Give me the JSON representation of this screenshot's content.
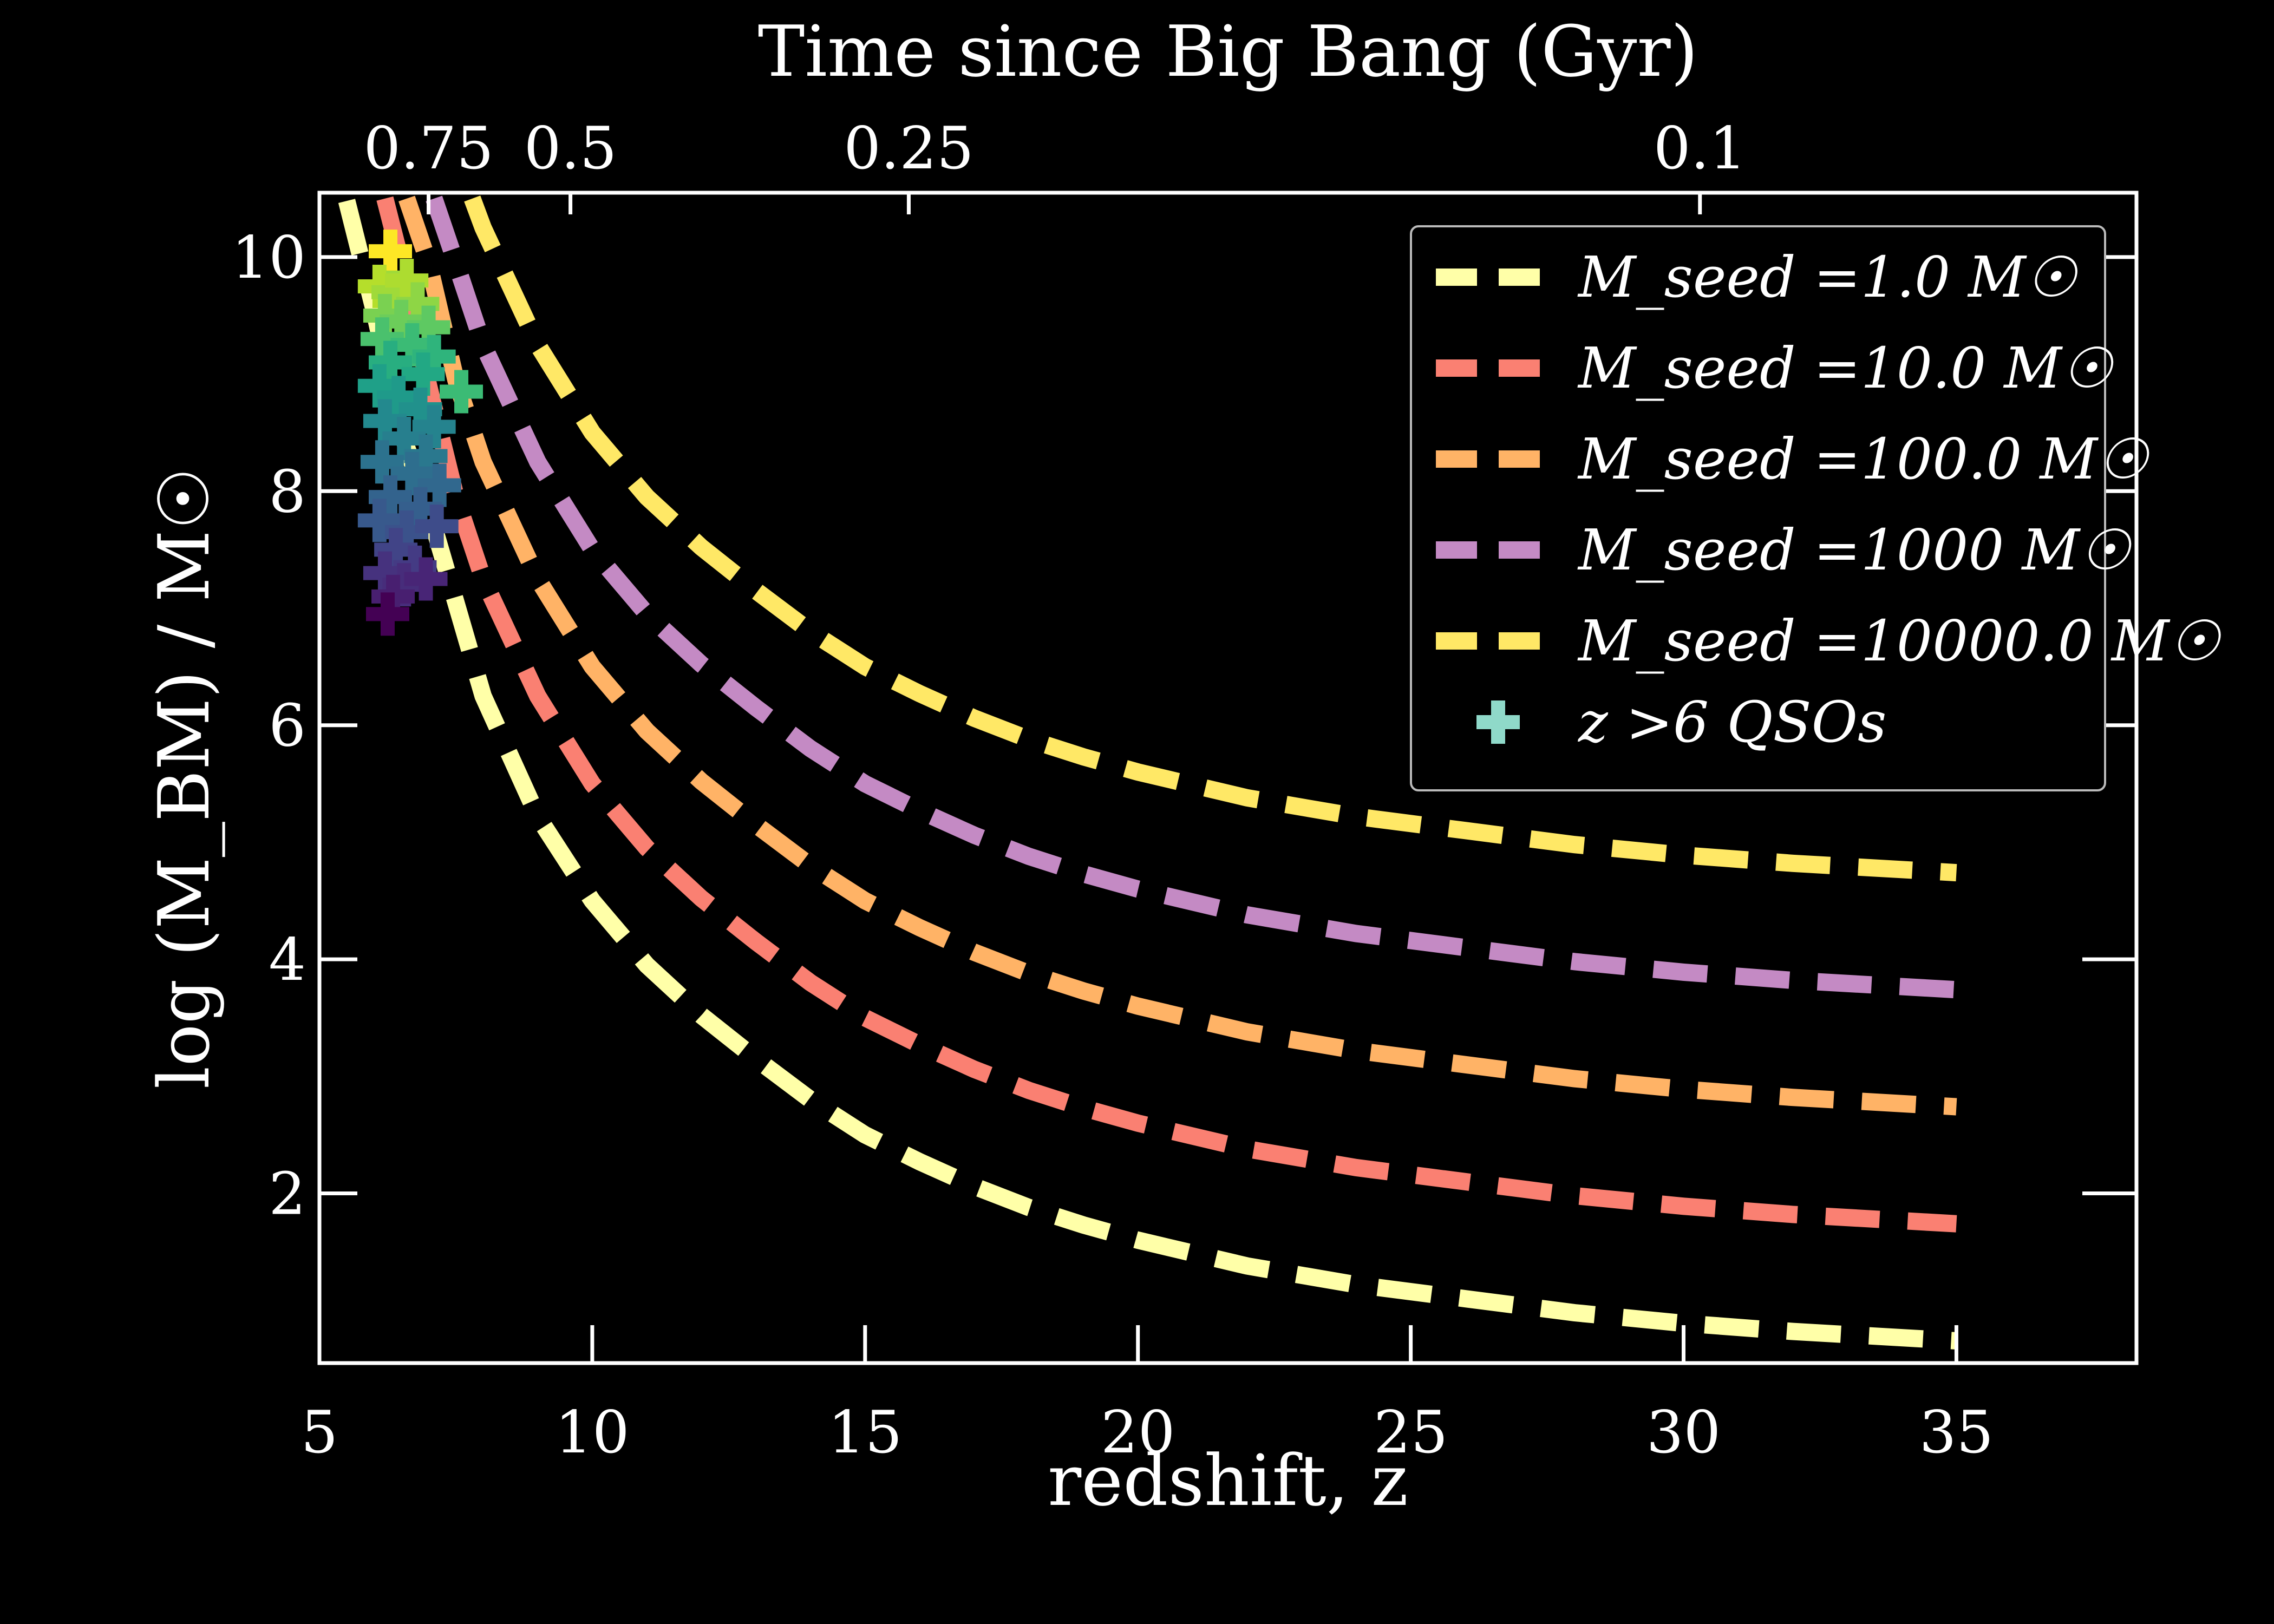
{
  "chart_data": {
    "type": "line",
    "xlabel": "redshift, z",
    "ylabel": "log (M_BM) / M☉",
    "top_xlabel": "Time since Big Bang (Gyr)",
    "xlim": [
      5,
      38.3
    ],
    "ylim": [
      0.55,
      10.55
    ],
    "x_ticks": [
      5,
      10,
      15,
      20,
      25,
      30,
      35
    ],
    "y_ticks": [
      2,
      4,
      6,
      8,
      10
    ],
    "top_ticks": [
      {
        "label": "0.75",
        "z": 7.0
      },
      {
        "label": "0.5",
        "z": 9.6
      },
      {
        "label": "0.25",
        "z": 15.8
      },
      {
        "label": "0.1",
        "z": 30.3
      }
    ],
    "background": "#000000",
    "axis_color": "#ffffff",
    "legend_position": "upper right",
    "series": [
      {
        "name": "M_seed =1.0 M☉",
        "color": "#ffffa8",
        "x": [
          5.5,
          6,
          6.5,
          7,
          8,
          9,
          10,
          11,
          12,
          13,
          14,
          15,
          16,
          17,
          18,
          19,
          20,
          22,
          24,
          26,
          28,
          30,
          32,
          35
        ],
        "y": [
          10.48,
          9.55,
          8.5,
          7.85,
          6.25,
          5.22,
          4.5,
          3.95,
          3.52,
          3.15,
          2.8,
          2.5,
          2.27,
          2.06,
          1.88,
          1.73,
          1.6,
          1.38,
          1.22,
          1.1,
          0.98,
          0.89,
          0.82,
          0.74
        ]
      },
      {
        "name": "M_seed =10.0 M☉",
        "color": "#fa8072",
        "x": [
          6.2,
          6.5,
          7,
          7.5,
          8,
          9,
          10,
          11,
          12,
          13,
          14,
          15,
          16,
          17,
          18,
          19,
          20,
          22,
          24,
          26,
          28,
          30,
          32,
          35
        ],
        "y": [
          10.5,
          9.95,
          8.9,
          7.95,
          7.25,
          6.25,
          5.5,
          4.95,
          4.52,
          4.15,
          3.8,
          3.5,
          3.27,
          3.06,
          2.88,
          2.73,
          2.6,
          2.38,
          2.22,
          2.1,
          1.98,
          1.89,
          1.82,
          1.74
        ]
      },
      {
        "name": "M_seed =100.0 M☉",
        "color": "#ffb366",
        "x": [
          6.6,
          7,
          7.5,
          8,
          9,
          10,
          11,
          12,
          13,
          14,
          15,
          16,
          17,
          18,
          19,
          20,
          22,
          24,
          26,
          28,
          30,
          32,
          35
        ],
        "y": [
          10.5,
          9.95,
          8.95,
          8.25,
          7.25,
          6.5,
          5.95,
          5.52,
          5.15,
          4.8,
          4.5,
          4.27,
          4.06,
          3.88,
          3.73,
          3.6,
          3.38,
          3.22,
          3.1,
          2.98,
          2.89,
          2.82,
          2.74
        ]
      },
      {
        "name": "M_seed =1000 M☉",
        "color": "#c48ac4",
        "x": [
          7.1,
          7.5,
          8,
          9,
          10,
          11,
          12,
          13,
          14,
          15,
          16,
          17,
          18,
          19,
          20,
          22,
          24,
          26,
          28,
          30,
          32,
          35
        ],
        "y": [
          10.5,
          9.95,
          9.25,
          8.25,
          7.5,
          6.95,
          6.52,
          6.15,
          5.8,
          5.5,
          5.27,
          5.06,
          4.88,
          4.73,
          4.6,
          4.38,
          4.22,
          4.1,
          3.98,
          3.89,
          3.82,
          3.74
        ]
      },
      {
        "name": "M_seed =10000.0 M☉",
        "color": "#ffe866",
        "x": [
          7.8,
          8,
          9,
          10,
          11,
          12,
          13,
          14,
          15,
          16,
          17,
          18,
          19,
          20,
          22,
          24,
          26,
          28,
          30,
          32,
          35
        ],
        "y": [
          10.5,
          10.25,
          9.25,
          8.5,
          7.95,
          7.52,
          7.15,
          6.8,
          6.5,
          6.27,
          6.06,
          5.88,
          5.73,
          5.6,
          5.38,
          5.22,
          5.1,
          4.98,
          4.89,
          4.82,
          4.74
        ]
      }
    ],
    "qso_series": {
      "name": "z >6 QSOs",
      "legend_color": "#8fd9c9",
      "points": [
        {
          "x": 6.3,
          "y": 10.05,
          "c": "#fde725"
        },
        {
          "x": 6.1,
          "y": 9.75,
          "c": "#b5de2b"
        },
        {
          "x": 6.35,
          "y": 9.7,
          "c": "#a0da39"
        },
        {
          "x": 6.6,
          "y": 9.8,
          "c": "#addc30"
        },
        {
          "x": 6.8,
          "y": 9.6,
          "c": "#8ed645"
        },
        {
          "x": 6.2,
          "y": 9.5,
          "c": "#7ad151"
        },
        {
          "x": 6.5,
          "y": 9.45,
          "c": "#6ccd5a"
        },
        {
          "x": 7.0,
          "y": 9.4,
          "c": "#5ec962"
        },
        {
          "x": 6.15,
          "y": 9.3,
          "c": "#4ac16d"
        },
        {
          "x": 6.7,
          "y": 9.25,
          "c": "#3bbb75"
        },
        {
          "x": 7.1,
          "y": 9.15,
          "c": "#2fb47c"
        },
        {
          "x": 6.3,
          "y": 9.1,
          "c": "#28ae80"
        },
        {
          "x": 6.9,
          "y": 9.0,
          "c": "#22a884"
        },
        {
          "x": 7.6,
          "y": 8.85,
          "c": "#3bbb75"
        },
        {
          "x": 6.1,
          "y": 8.9,
          "c": "#1fa088"
        },
        {
          "x": 6.45,
          "y": 8.8,
          "c": "#1f9a8a"
        },
        {
          "x": 6.85,
          "y": 8.7,
          "c": "#21918c"
        },
        {
          "x": 6.2,
          "y": 8.6,
          "c": "#23898e"
        },
        {
          "x": 7.1,
          "y": 8.55,
          "c": "#25838e"
        },
        {
          "x": 6.55,
          "y": 8.45,
          "c": "#277f8e"
        },
        {
          "x": 6.95,
          "y": 8.3,
          "c": "#2a788e"
        },
        {
          "x": 6.15,
          "y": 8.25,
          "c": "#2c728e"
        },
        {
          "x": 6.7,
          "y": 8.15,
          "c": "#2e6e8e"
        },
        {
          "x": 7.2,
          "y": 8.05,
          "c": "#31688e"
        },
        {
          "x": 6.3,
          "y": 7.95,
          "c": "#33638d"
        },
        {
          "x": 6.85,
          "y": 7.85,
          "c": "#355f8d"
        },
        {
          "x": 6.1,
          "y": 7.75,
          "c": "#38598c"
        },
        {
          "x": 6.6,
          "y": 7.65,
          "c": "#3b528b"
        },
        {
          "x": 7.15,
          "y": 7.7,
          "c": "#3e4c8a"
        },
        {
          "x": 6.4,
          "y": 7.5,
          "c": "#414487"
        },
        {
          "x": 6.75,
          "y": 7.35,
          "c": "#443b84"
        },
        {
          "x": 6.2,
          "y": 7.3,
          "c": "#46327e"
        },
        {
          "x": 6.55,
          "y": 7.2,
          "c": "#472d7b"
        },
        {
          "x": 6.95,
          "y": 7.25,
          "c": "#482576"
        },
        {
          "x": 6.35,
          "y": 7.1,
          "c": "#481f70"
        },
        {
          "x": 6.25,
          "y": 6.95,
          "c": "#440154"
        }
      ]
    }
  }
}
